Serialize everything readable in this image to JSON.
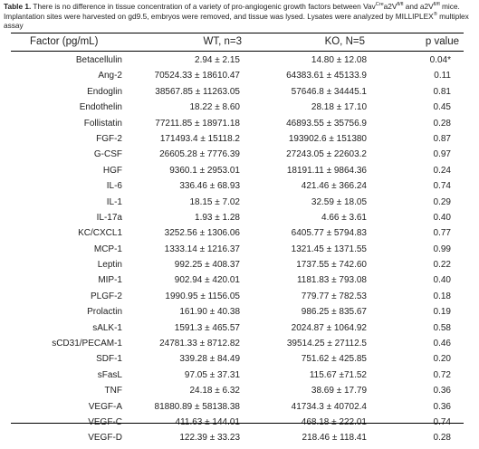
{
  "caption": {
    "label": "Table 1.",
    "text_1": " There is no difference in tissue concentration of a variety of pro-angiogenic growth factors between Vav",
    "sup_1": "Cre",
    "text_2": "a2V",
    "sup_2": "fl/fl",
    "text_3": " and a2V",
    "sup_3": "fl/fl",
    "text_4": " mice. Implantation sites were harvested on gd9.5, embryos were removed, and tissue was lysed. Lysates were analyzed by MILLIPLEX",
    "sup_4": "®",
    "text_5": " multiplex assay"
  },
  "table": {
    "headers": {
      "factor": "Factor (pg/mL)",
      "wt": "WT, n=3",
      "ko": "KO, N=5",
      "p": "p value"
    },
    "rows": [
      {
        "factor": "Betacellulin",
        "wt": "2.94 ± 2.15",
        "ko": "14.80 ± 12.08",
        "p": "0.04*"
      },
      {
        "factor": "Ang-2",
        "wt": "70524.33 ± 18610.47",
        "ko": "64383.61 ± 45133.9",
        "p": "0.11"
      },
      {
        "factor": "Endoglin",
        "wt": "38567.85 ± 11263.05",
        "ko": "57646.8 ± 34445.1",
        "p": "0.81"
      },
      {
        "factor": "Endothelin",
        "wt": "18.22 ± 8.60",
        "ko": "28.18 ± 17.10",
        "p": "0.45"
      },
      {
        "factor": "Follistatin",
        "wt": "77211.85 ± 18971.18",
        "ko": "46893.55 ± 35756.9",
        "p": "0.28"
      },
      {
        "factor": "FGF-2",
        "wt": "171493.4 ± 15118.2",
        "ko": "193902.6 ± 151380",
        "p": "0.87"
      },
      {
        "factor": "G-CSF",
        "wt": "26605.28 ± 7776.39",
        "ko": "27243.05 ± 22603.2",
        "p": "0.97"
      },
      {
        "factor": "HGF",
        "wt": "9360.1 ± 2953.01",
        "ko": "18191.11 ± 9864.36",
        "p": "0.24"
      },
      {
        "factor": "IL-6",
        "wt": "336.46 ± 68.93",
        "ko": "421.46 ± 366.24",
        "p": "0.74"
      },
      {
        "factor": "IL-1",
        "wt": "18.15 ± 7.02",
        "ko": "32.59 ± 18.05",
        "p": "0.29"
      },
      {
        "factor": "IL-17a",
        "wt": "1.93 ± 1.28",
        "ko": "4.66 ± 3.61",
        "p": "0.40"
      },
      {
        "factor": "KC/CXCL1",
        "wt": "3252.56 ± 1306.06",
        "ko": "6405.77 ± 5794.83",
        "p": "0.77"
      },
      {
        "factor": "MCP-1",
        "wt": "1333.14 ± 1216.37",
        "ko": "1321.45 ± 1371.55",
        "p": "0.99"
      },
      {
        "factor": "Leptin",
        "wt": "992.25 ± 408.37",
        "ko": "1737.55 ± 742.60",
        "p": "0.22"
      },
      {
        "factor": "MIP-1",
        "wt": "902.94 ± 420.01",
        "ko": "1181.83 ± 793.08",
        "p": "0.40"
      },
      {
        "factor": "PLGF-2",
        "wt": "1990.95 ± 1156.05",
        "ko": "779.77 ± 782.53",
        "p": "0.18"
      },
      {
        "factor": "Prolactin",
        "wt": "161.90 ± 40.38",
        "ko": "986.25 ± 835.67",
        "p": "0.19"
      },
      {
        "factor": "sALK-1",
        "wt": "1591.3 ± 465.57",
        "ko": "2024.87 ± 1064.92",
        "p": "0.58"
      },
      {
        "factor": "sCD31/PECAM-1",
        "wt": "24781.33 ± 8712.82",
        "ko": "39514.25 ± 27112.5",
        "p": "0.46"
      },
      {
        "factor": "SDF-1",
        "wt": "339.28 ± 84.49",
        "ko": "751.62 ± 425.85",
        "p": "0.20"
      },
      {
        "factor": "sFasL",
        "wt": "97.05 ± 37.31",
        "ko": "115.67 ±71.52",
        "p": "0.72"
      },
      {
        "factor": "TNF",
        "wt": "24.18 ± 6.32",
        "ko": "38.69 ± 17.79",
        "p": "0.36"
      },
      {
        "factor": "VEGF-A",
        "wt": "81880.89 ± 58138.38",
        "ko": "41734.3 ± 40702.4",
        "p": "0.36"
      },
      {
        "factor": "VEGF-C",
        "wt": "411.63 ± 144.01",
        "ko": "468.18 ± 222.01",
        "p": "0.74"
      },
      {
        "factor": "VEGF-D",
        "wt": "122.39 ± 33.23",
        "ko": "218.46 ± 118.41",
        "p": "0.28"
      }
    ]
  }
}
